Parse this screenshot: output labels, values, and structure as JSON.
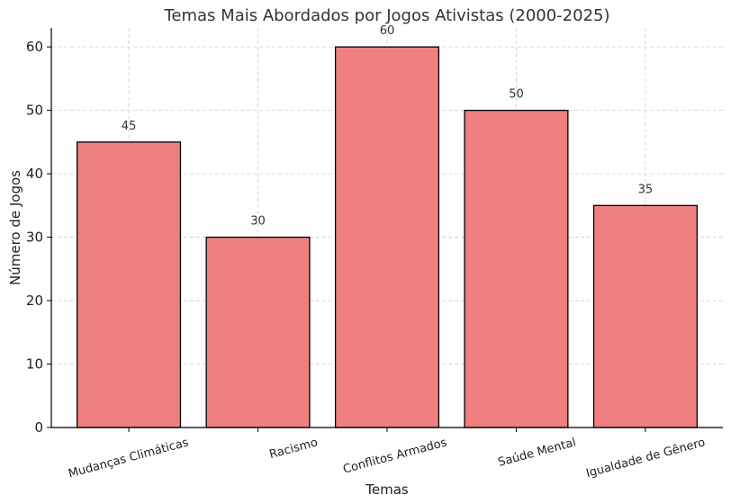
{
  "chart_data": {
    "type": "bar",
    "title": "Temas Mais Abordados por Jogos Ativistas (2000-2025)",
    "xlabel": "Temas",
    "ylabel": "Número de Jogos",
    "categories": [
      "Mudanças Climáticas",
      "Racismo",
      "Conflitos Armados",
      "Saúde Mental",
      "Igualdade de Gênero"
    ],
    "values": [
      45,
      30,
      60,
      50,
      35
    ],
    "ylim": [
      0,
      63
    ],
    "yticks": [
      0,
      10,
      20,
      30,
      40,
      50,
      60
    ],
    "grid": true,
    "data_labels": true,
    "bar_color": "#f08080",
    "edge_color": "#000000",
    "grid_color": "#cccccc"
  }
}
